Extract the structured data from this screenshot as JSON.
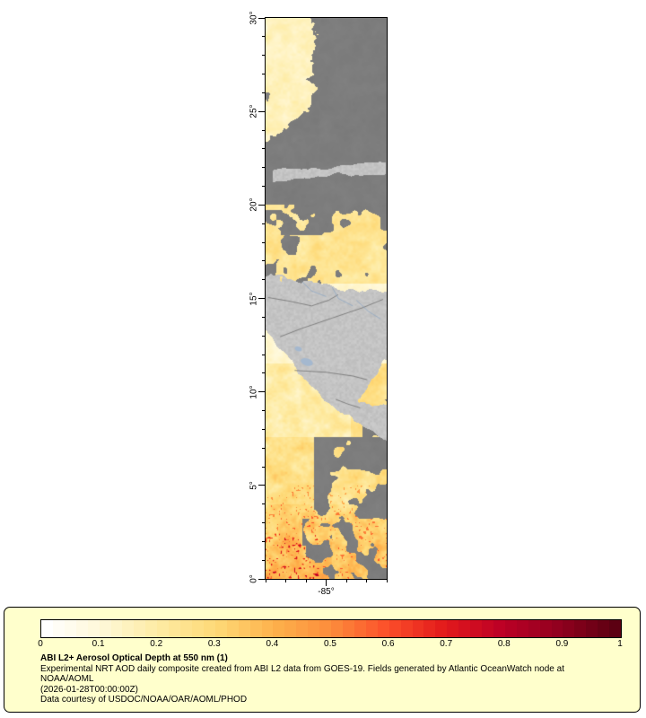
{
  "page": {
    "background": "#ffffff"
  },
  "map": {
    "lat_labels": [
      "30°",
      "25°",
      "20°",
      "15°",
      "10°",
      "5°",
      "0°"
    ],
    "lon_label": "-85°",
    "colors": {
      "land": "#c6c6c6",
      "cloud": "#7e7e7e",
      "border_line": "#6e6e6e",
      "river": "#86a3c3",
      "lake": "#a4b8cf",
      "frame": "#000000"
    }
  },
  "colorbar": {
    "stops": [
      "#ffffff",
      "#fff8d6",
      "#feeba2",
      "#fed976",
      "#feb24c",
      "#fd8d3c",
      "#fc4e2a",
      "#e31a1c",
      "#bd0026",
      "#92001f",
      "#5c0012"
    ],
    "tick_labels": [
      "0",
      "0.1",
      "0.2",
      "0.3",
      "0.4",
      "0.5",
      "0.6",
      "0.7",
      "0.8",
      "0.9",
      "1"
    ]
  },
  "legend": {
    "background": "#ffffcc",
    "title": "ABI L2+ Aerosol Optical Depth at 550 nm (1)",
    "subtitle": "Experimental NRT AOD daily composite created from ABI L2 data from GOES-19. Fields generated by Atlantic OceanWatch node at NOAA/AOML",
    "timestamp": "(2026-01-28T00:00:00Z)",
    "credit": "Data courtesy of USDOC/NOAA/OAR/AOML/PHOD"
  },
  "chart_data": {
    "type": "heatmap",
    "title": "ABI L2+ Aerosol Optical Depth at 550 nm (1)",
    "variable": "Aerosol Optical Depth at 550 nm",
    "value_range": [
      0,
      1
    ],
    "colorbar_tick_values": [
      0,
      0.1,
      0.2,
      0.3,
      0.4,
      0.5,
      0.6,
      0.7,
      0.8,
      0.9,
      1
    ],
    "lat_axis": {
      "ticks_deg": [
        30,
        25,
        20,
        15,
        10,
        5,
        0
      ],
      "range_deg": [
        0,
        30
      ]
    },
    "lon_axis": {
      "ticks_deg": [
        -85
      ]
    },
    "legend_position": "bottom",
    "rendering": {
      "aod_over_ocean": "white-yellow-orange-red colormap, mostly 0.1-0.5",
      "missing_data_clouds": "dark gray",
      "land": "light gray with country borders and rivers"
    }
  }
}
